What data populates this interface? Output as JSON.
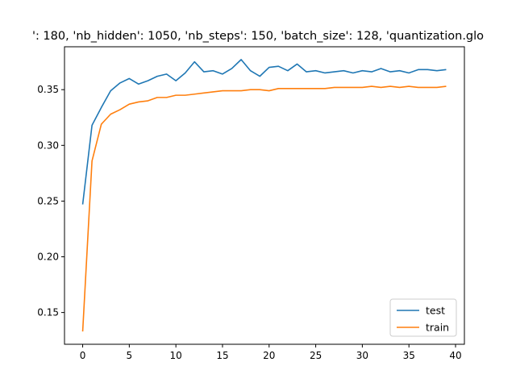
{
  "chart_data": {
    "type": "line",
    "title": "': 180, 'nb_hidden': 1050, 'nb_steps': 150, 'batch_size': 128, 'quantization.glo",
    "xlabel": "",
    "ylabel": "",
    "xlim": [
      -1.95,
      40.95
    ],
    "ylim": [
      0.1215,
      0.3885
    ],
    "x_ticks": [
      0,
      5,
      10,
      15,
      20,
      25,
      30,
      35,
      40
    ],
    "y_ticks": [
      0.15,
      0.2,
      0.25,
      0.3,
      0.35
    ],
    "y_tick_labels": [
      "0.15",
      "0.20",
      "0.25",
      "0.30",
      "0.35"
    ],
    "x_tick_labels": [
      "0",
      "5",
      "10",
      "15",
      "20",
      "25",
      "30",
      "35",
      "40"
    ],
    "grid": false,
    "legend_position": "lower-right",
    "x": [
      0,
      1,
      2,
      3,
      4,
      5,
      6,
      7,
      8,
      9,
      10,
      11,
      12,
      13,
      14,
      15,
      16,
      17,
      18,
      19,
      20,
      21,
      22,
      23,
      24,
      25,
      26,
      27,
      28,
      29,
      30,
      31,
      32,
      33,
      34,
      35,
      36,
      37,
      38,
      39
    ],
    "series": [
      {
        "name": "test",
        "color": "#1f77b4",
        "values": [
          0.247,
          0.318,
          0.334,
          0.349,
          0.356,
          0.36,
          0.355,
          0.358,
          0.362,
          0.364,
          0.358,
          0.365,
          0.375,
          0.366,
          0.367,
          0.364,
          0.369,
          0.377,
          0.367,
          0.362,
          0.37,
          0.371,
          0.367,
          0.373,
          0.366,
          0.367,
          0.365,
          0.366,
          0.367,
          0.365,
          0.367,
          0.366,
          0.369,
          0.366,
          0.367,
          0.365,
          0.368,
          0.368,
          0.367,
          0.368
        ]
      },
      {
        "name": "train",
        "color": "#ff7f0e",
        "values": [
          0.133,
          0.286,
          0.319,
          0.328,
          0.332,
          0.337,
          0.339,
          0.34,
          0.343,
          0.343,
          0.345,
          0.345,
          0.346,
          0.347,
          0.348,
          0.349,
          0.349,
          0.349,
          0.35,
          0.35,
          0.349,
          0.351,
          0.351,
          0.351,
          0.351,
          0.351,
          0.351,
          0.352,
          0.352,
          0.352,
          0.352,
          0.353,
          0.352,
          0.353,
          0.352,
          0.353,
          0.352,
          0.352,
          0.352,
          0.353
        ]
      }
    ]
  }
}
